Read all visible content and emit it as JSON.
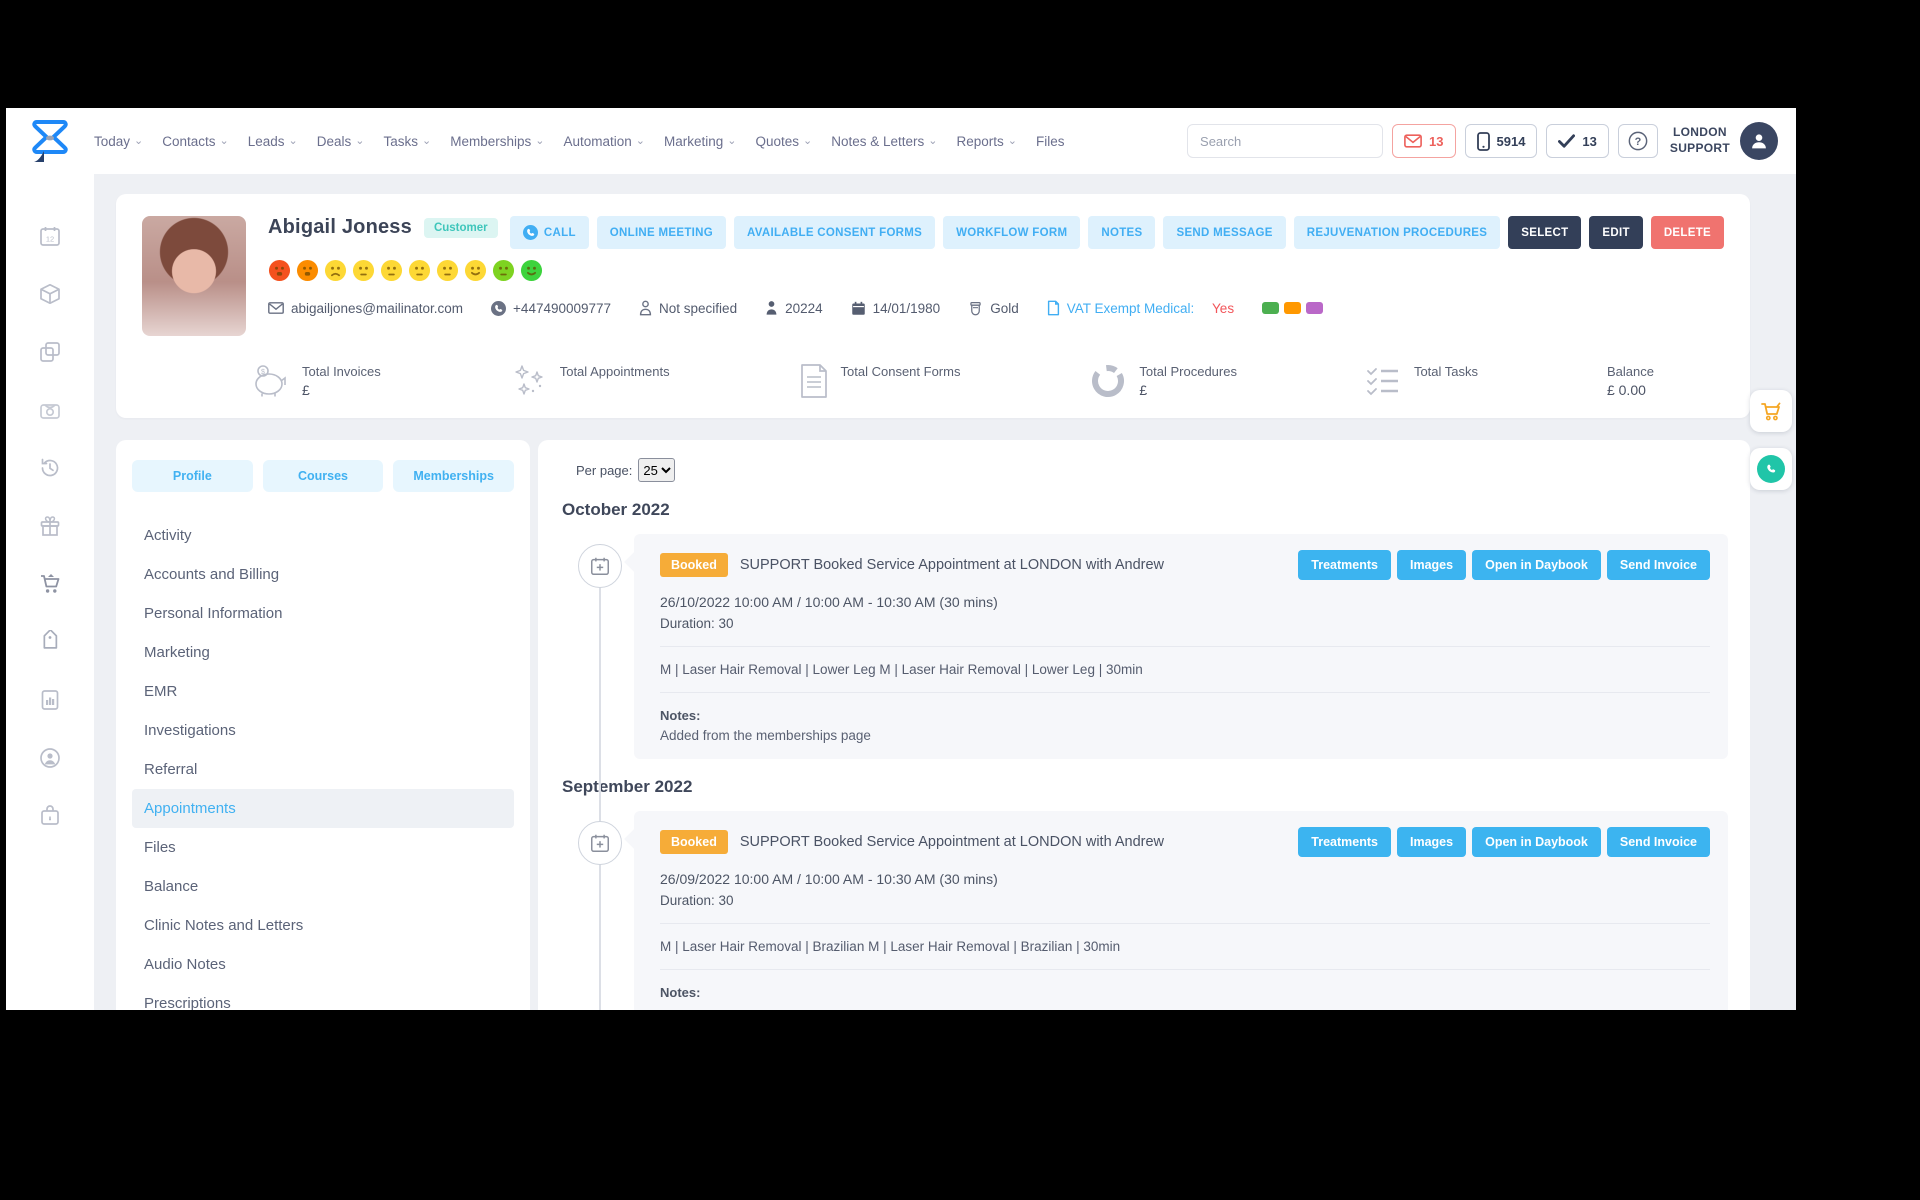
{
  "colors": {
    "accent_blue": "#41aef3",
    "light_blue_bg": "#def1fd",
    "navy": "#333f58",
    "salmon": "#f0736f",
    "booked_orange": "#f6ac38",
    "customer_badge_bg": "#dcf5f2",
    "customer_badge_text": "#3fc6bb",
    "vat_value_red": "#f2555a"
  },
  "icons": {
    "chevron": "⌄"
  },
  "header": {
    "nav": [
      "Today",
      "Contacts",
      "Leads",
      "Deals",
      "Tasks",
      "Memberships",
      "Automation",
      "Marketing",
      "Quotes",
      "Notes & Letters",
      "Reports",
      "Files"
    ],
    "search_placeholder": "Search",
    "mail_count": "13",
    "phone_count": "5914",
    "task_count": "13",
    "account_line1": "LONDON",
    "account_line2": "SUPPORT"
  },
  "patient": {
    "name": "Abigail Joness",
    "type_badge": "Customer",
    "email": "abigailjones@mailinator.com",
    "phone": "+447490009777",
    "insurance": "Not specified",
    "patient_id": "20224",
    "dob": "14/01/1980",
    "tier": "Gold",
    "vat_label": "VAT Exempt Medical:",
    "vat_value": "Yes",
    "swatches": [
      "#4caf50",
      "#ff9800",
      "#ba68c8"
    ],
    "emojis": [
      {
        "color": "#f4511e",
        "mouth": "open"
      },
      {
        "color": "#fb8c00",
        "mouth": "open"
      },
      {
        "color": "#fdd835",
        "mouth": "frown"
      },
      {
        "color": "#fdd835",
        "mouth": "neutral"
      },
      {
        "color": "#fdd835",
        "mouth": "neutral"
      },
      {
        "color": "#fdd835",
        "mouth": "neutral"
      },
      {
        "color": "#fdd835",
        "mouth": "neutral"
      },
      {
        "color": "#fdd835",
        "mouth": "smile"
      },
      {
        "color": "#7ed321",
        "mouth": "neutral"
      },
      {
        "color": "#3dd33d",
        "mouth": "smile"
      }
    ]
  },
  "actions": {
    "call": "CALL",
    "online_meeting": "ONLINE MEETING",
    "consent_forms": "AVAILABLE CONSENT FORMS",
    "workflow_form": "WORKFLOW FORM",
    "notes": "NOTES",
    "send_message": "SEND MESSAGE",
    "rejuvenation": "REJUVENATION PROCEDURES",
    "select": "SELECT",
    "edit": "EDIT",
    "delete": "DELETE"
  },
  "stats": {
    "items": [
      {
        "label": "Total Invoices",
        "value": "£"
      },
      {
        "label": "Total Appointments",
        "value": ""
      },
      {
        "label": "Total Consent Forms",
        "value": ""
      },
      {
        "label": "Total Procedures",
        "value": "£"
      },
      {
        "label": "Total Tasks",
        "value": ""
      },
      {
        "label": "Balance",
        "value": "£ 0.00"
      }
    ]
  },
  "tabs": [
    "Profile",
    "Courses",
    "Memberships"
  ],
  "sidebar": {
    "items": [
      "Activity",
      "Accounts and Billing",
      "Personal Information",
      "Marketing",
      "EMR",
      "Investigations",
      "Referral",
      "Appointments",
      "Files",
      "Balance",
      "Clinic Notes and Letters",
      "Audio Notes",
      "Prescriptions"
    ],
    "active_index": 7
  },
  "content": {
    "per_page_label": "Per page:",
    "per_page_value": "25",
    "sections": [
      {
        "month": "October 2022",
        "card": {
          "status": "Booked",
          "title": "SUPPORT Booked Service Appointment at LONDON with Andrew",
          "buttons": [
            "Treatments",
            "Images",
            "Open in Daybook",
            "Send Invoice"
          ],
          "datetime": "26/10/2022 10:00 AM / 10:00 AM - 10:30 AM (30 mins)",
          "duration": "Duration: 30",
          "service": "M | Laser Hair Removal | Lower Leg M | Laser Hair Removal | Lower Leg | 30min",
          "notes_label": "Notes:",
          "notes": "Added from the memberships page"
        }
      },
      {
        "month": "September 2022",
        "card": {
          "status": "Booked",
          "title": "SUPPORT Booked Service Appointment at LONDON with Andrew",
          "buttons": [
            "Treatments",
            "Images",
            "Open in Daybook",
            "Send Invoice"
          ],
          "datetime": "26/09/2022 10:00 AM / 10:00 AM - 10:30 AM (30 mins)",
          "duration": "Duration: 30",
          "service": "M | Laser Hair Removal | Brazilian M | Laser Hair Removal | Brazilian | 30min",
          "notes_label": "Notes:",
          "notes": ""
        }
      }
    ]
  }
}
